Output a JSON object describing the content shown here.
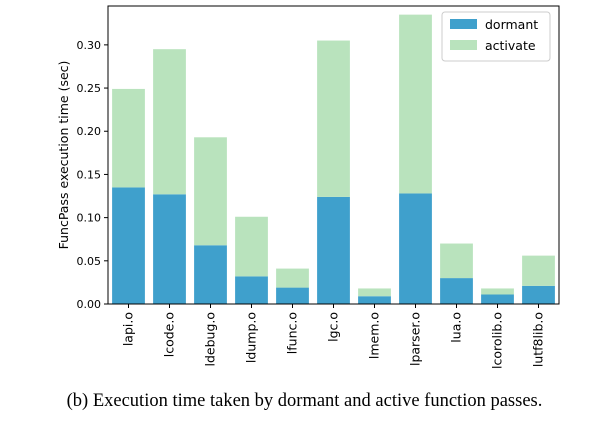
{
  "chart_data": {
    "type": "bar",
    "stacked": true,
    "categories": [
      "lapi.o",
      "lcode.o",
      "ldebug.o",
      "ldump.o",
      "lfunc.o",
      "lgc.o",
      "lmem.o",
      "lparser.o",
      "lua.o",
      "lcorolib.o",
      "lutf8lib.o"
    ],
    "series": [
      {
        "name": "dormant",
        "color": "#3fa0cc",
        "values": [
          0.135,
          0.127,
          0.068,
          0.032,
          0.019,
          0.124,
          0.009,
          0.128,
          0.03,
          0.011,
          0.021
        ]
      },
      {
        "name": "activate",
        "color": "#b9e3bd",
        "values": [
          0.114,
          0.168,
          0.125,
          0.069,
          0.022,
          0.181,
          0.009,
          0.207,
          0.04,
          0.007,
          0.035
        ]
      }
    ],
    "xlabel": "",
    "ylabel": "FuncPass execution time (sec)",
    "ylim": [
      0,
      0.345
    ],
    "yticks": [
      0.0,
      0.05,
      0.1,
      0.15,
      0.2,
      0.25,
      0.3
    ],
    "ytick_labels": [
      "0.00",
      "0.05",
      "0.10",
      "0.15",
      "0.20",
      "0.25",
      "0.30"
    ],
    "legend_position": "top-right",
    "grid": false
  },
  "caption": "(b) Execution time taken by dormant and active function passes."
}
